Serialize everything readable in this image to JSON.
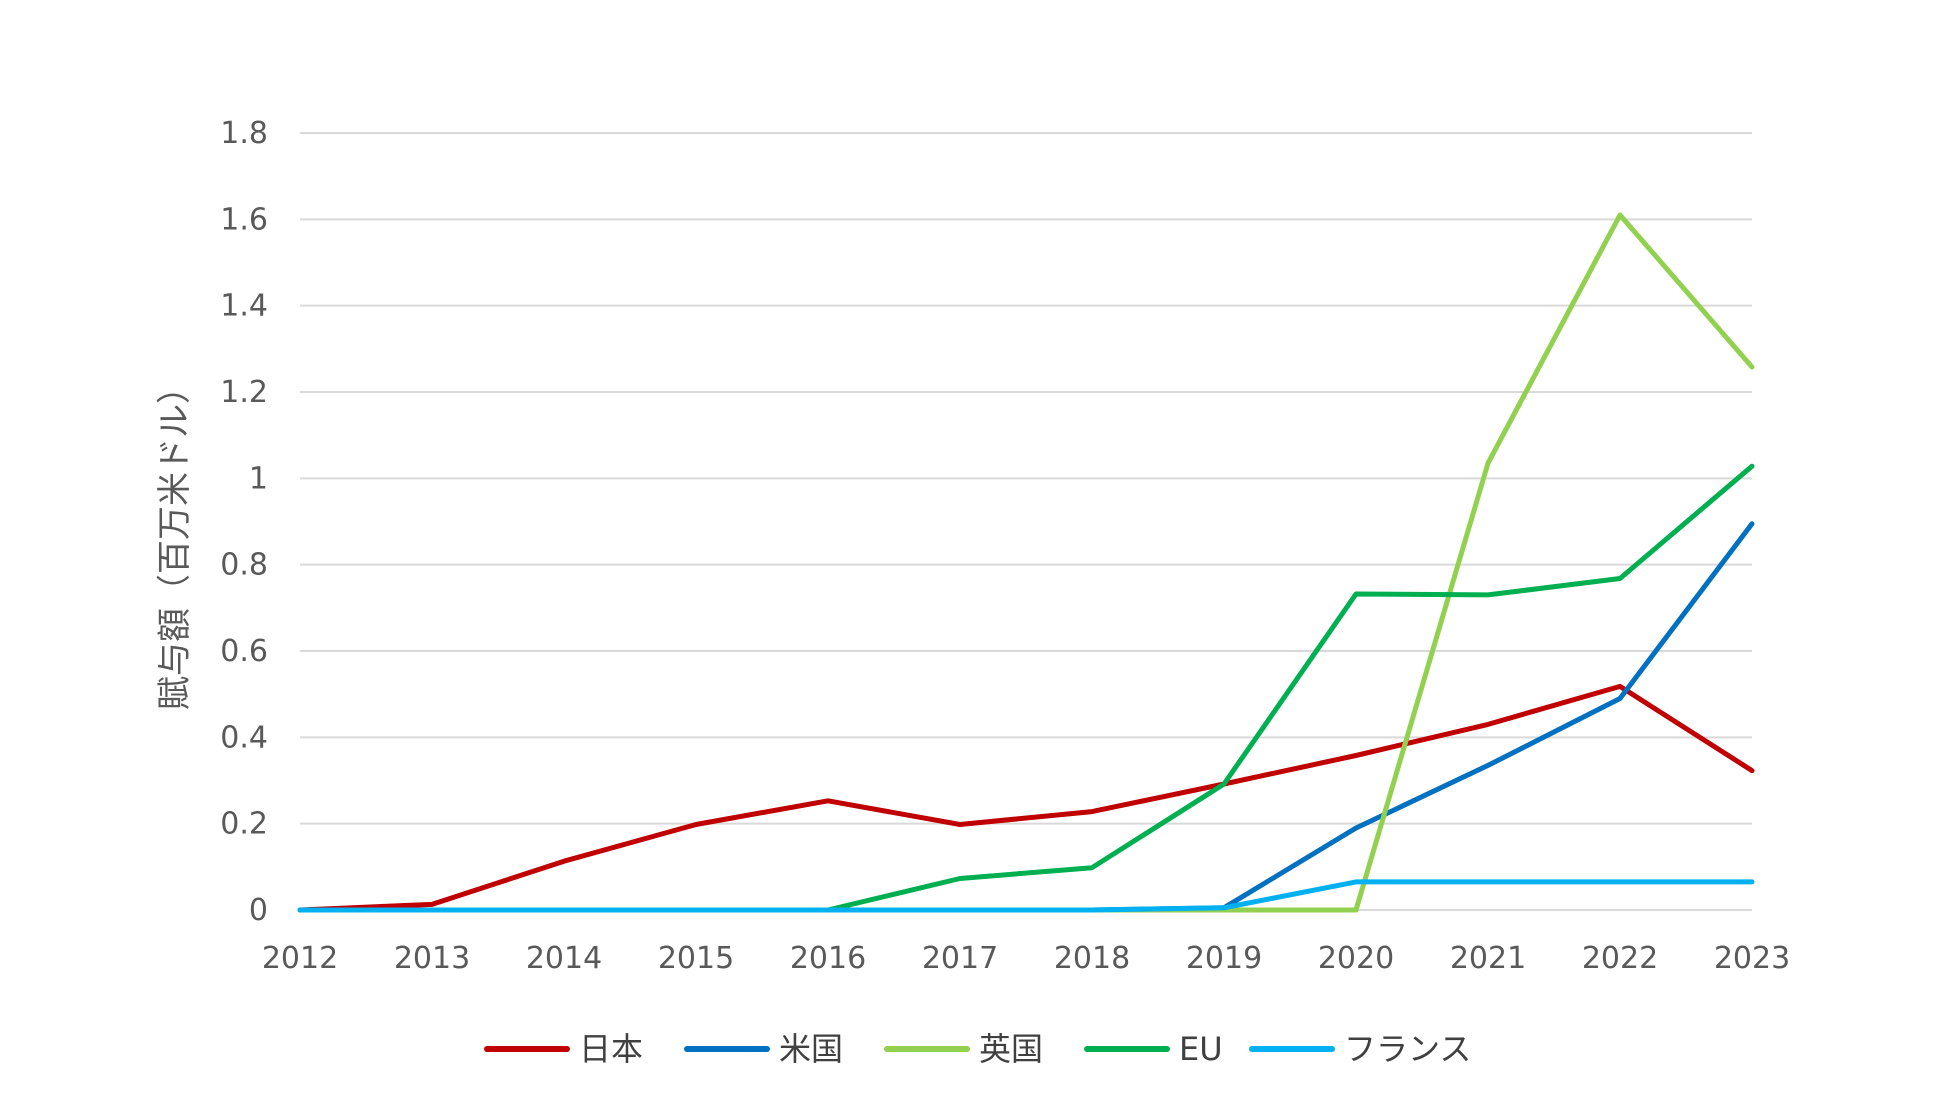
{
  "chart_data": {
    "type": "line",
    "title": "",
    "xlabel": "",
    "ylabel": "賦与額（百万米ドル）",
    "x": [
      "2012",
      "2013",
      "2014",
      "2015",
      "2016",
      "2017",
      "2018",
      "2019",
      "2020",
      "2021",
      "2022",
      "2023"
    ],
    "ylim": [
      0,
      1.8
    ],
    "yticks": [
      "0",
      "0.2",
      "0.4",
      "0.6",
      "0.8",
      "1",
      "1.2",
      "1.4",
      "1.6",
      "1.8"
    ],
    "ytick_values": [
      0,
      0.2,
      0.4,
      0.6,
      0.8,
      1.0,
      1.2,
      1.4,
      1.6,
      1.8
    ],
    "grid": true,
    "legend_position": "bottom",
    "series": [
      {
        "name": "日本",
        "color": "#C00000",
        "values": [
          0,
          0.013,
          0.113,
          0.198,
          0.253,
          0.198,
          0.228,
          0.292,
          0.358,
          0.43,
          0.518,
          0.323
        ]
      },
      {
        "name": "米国",
        "color": "#0070C0",
        "values": [
          0,
          0,
          0,
          0,
          0,
          0,
          0,
          0.005,
          0.19,
          0.335,
          0.49,
          0.895
        ]
      },
      {
        "name": "英国",
        "color": "#92D050",
        "values": [
          0,
          0,
          0,
          0,
          0,
          0,
          0,
          0,
          0,
          1.035,
          1.61,
          1.258
        ]
      },
      {
        "name": "EU",
        "color": "#00B050",
        "values": [
          0,
          0,
          0,
          0,
          0,
          0.073,
          0.098,
          0.292,
          0.732,
          0.73,
          0.768,
          1.028
        ]
      },
      {
        "name": "フランス",
        "color": "#00B0F0",
        "values": [
          0,
          0,
          0,
          0,
          0,
          0,
          0,
          0.005,
          0.065,
          0.065,
          0.065,
          0.065
        ]
      }
    ]
  }
}
